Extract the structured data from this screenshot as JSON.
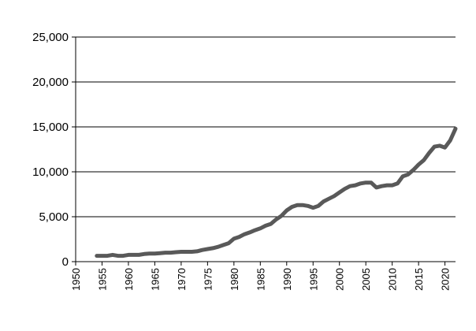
{
  "chart_data": {
    "type": "line",
    "title": "",
    "xlabel": "",
    "ylabel": "",
    "xlim": [
      1950,
      2022
    ],
    "ylim": [
      0,
      25000
    ],
    "x_ticks": [
      "1950",
      "1955",
      "1960",
      "1965",
      "1970",
      "1975",
      "1980",
      "1985",
      "1990",
      "1995",
      "2000",
      "2005",
      "2010",
      "2015",
      "2020"
    ],
    "y_ticks": [
      "0",
      "5,000",
      "10,000",
      "15,000",
      "20,000",
      "25,000"
    ],
    "grid": true,
    "legend": "none",
    "series": [
      {
        "color": "#595959",
        "x": [
          1954,
          1955,
          1956,
          1957,
          1958,
          1959,
          1960,
          1961,
          1962,
          1963,
          1964,
          1965,
          1966,
          1967,
          1968,
          1969,
          1970,
          1971,
          1972,
          1973,
          1974,
          1975,
          1976,
          1977,
          1978,
          1979,
          1980,
          1981,
          1982,
          1983,
          1984,
          1985,
          1986,
          1987,
          1988,
          1989,
          1990,
          1991,
          1992,
          1993,
          1994,
          1995,
          1996,
          1997,
          1998,
          1999,
          2000,
          2001,
          2002,
          2003,
          2004,
          2005,
          2006,
          2007,
          2008,
          2009,
          2010,
          2011,
          2012,
          2013,
          2014,
          2015,
          2016,
          2017,
          2018,
          2019,
          2020,
          2021,
          2022
        ],
        "values": [
          650,
          650,
          650,
          750,
          650,
          650,
          750,
          750,
          750,
          850,
          900,
          900,
          950,
          1000,
          1000,
          1050,
          1100,
          1100,
          1100,
          1150,
          1300,
          1400,
          1500,
          1650,
          1850,
          2050,
          2550,
          2750,
          3050,
          3250,
          3500,
          3700,
          4000,
          4200,
          4700,
          5100,
          5700,
          6100,
          6300,
          6300,
          6200,
          6000,
          6200,
          6700,
          7000,
          7300,
          7700,
          8100,
          8400,
          8500,
          8700,
          8800,
          8800,
          8250,
          8400,
          8500,
          8500,
          8700,
          9500,
          9700,
          10200,
          10800,
          11300,
          12100,
          12800,
          12900,
          12700,
          13500,
          14800
        ]
      }
    ]
  }
}
